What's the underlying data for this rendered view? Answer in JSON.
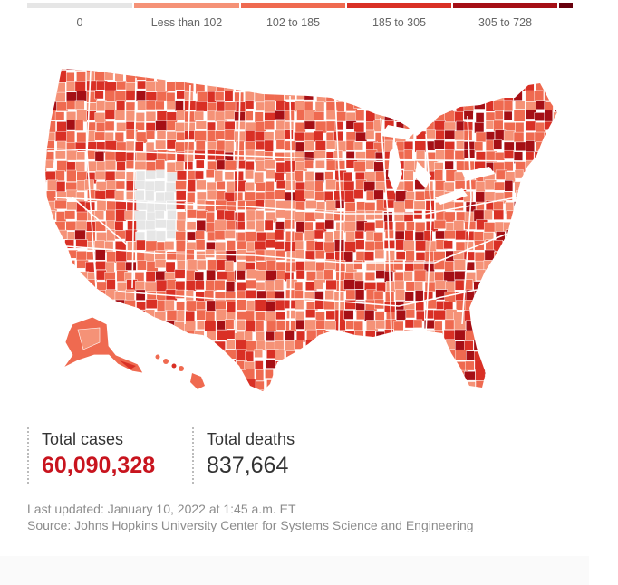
{
  "legend": {
    "items": [
      {
        "label": "0",
        "color": "#e6e6e6"
      },
      {
        "label": "Less than 102",
        "color": "#f59277"
      },
      {
        "label": "102 to 185",
        "color": "#ef6a50"
      },
      {
        "label": "185 to 305",
        "color": "#d93025"
      },
      {
        "label": "305 to 728",
        "color": "#a50f15"
      }
    ],
    "overflow_color": "#67000d"
  },
  "map": {
    "colors": {
      "base": "#ee6c52",
      "light": "#f59277",
      "mid": "#ef6a50",
      "high": "#d93025",
      "very_high": "#a50f15",
      "zero": "#e6e6e6",
      "border": "#ffffff"
    }
  },
  "stats": {
    "total_cases_label": "Total cases",
    "total_cases_value": "60,090,328",
    "total_deaths_label": "Total deaths",
    "total_deaths_value": "837,664"
  },
  "meta": {
    "last_updated": "Last updated: January 10, 2022 at 1:45 a.m. ET",
    "source": "Source: Johns Hopkins University Center for Systems Science and Engineering"
  }
}
